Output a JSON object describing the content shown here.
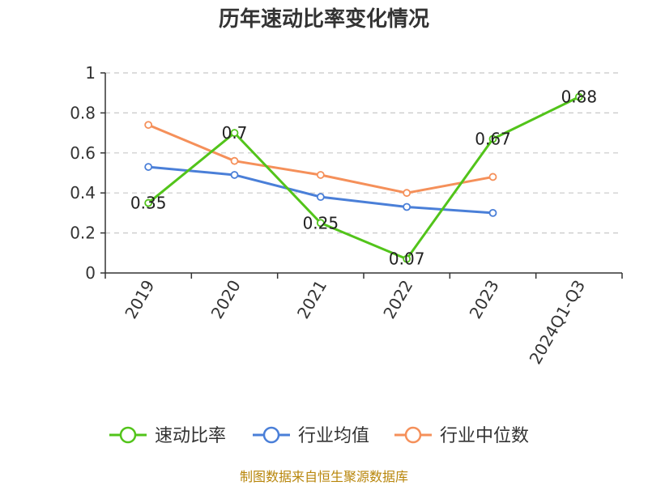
{
  "chart_data": {
    "type": "line",
    "title": "历年速动比率变化情况",
    "categories": [
      "2019",
      "2020",
      "2021",
      "2022",
      "2023",
      "2024Q1-Q3"
    ],
    "ylim": [
      0,
      1
    ],
    "yticks": [
      "0",
      "0.2",
      "0.4",
      "0.6",
      "0.8",
      "1"
    ],
    "grid": true,
    "legend_position": "bottom",
    "series": [
      {
        "name": "速动比率",
        "color": "#52c41a",
        "values": [
          0.35,
          0.7,
          0.25,
          0.07,
          0.67,
          0.88
        ],
        "labels": [
          "0.35",
          "0.7",
          "0.25",
          "0.07",
          "0.67",
          "0.88"
        ]
      },
      {
        "name": "行业均值",
        "color": "#4a7fd8",
        "values": [
          0.53,
          0.49,
          0.38,
          0.33,
          0.3,
          null
        ]
      },
      {
        "name": "行业中位数",
        "color": "#f5905a",
        "values": [
          0.74,
          0.56,
          0.49,
          0.4,
          0.48,
          null
        ]
      }
    ]
  },
  "source": "制图数据来自恒生聚源数据库"
}
